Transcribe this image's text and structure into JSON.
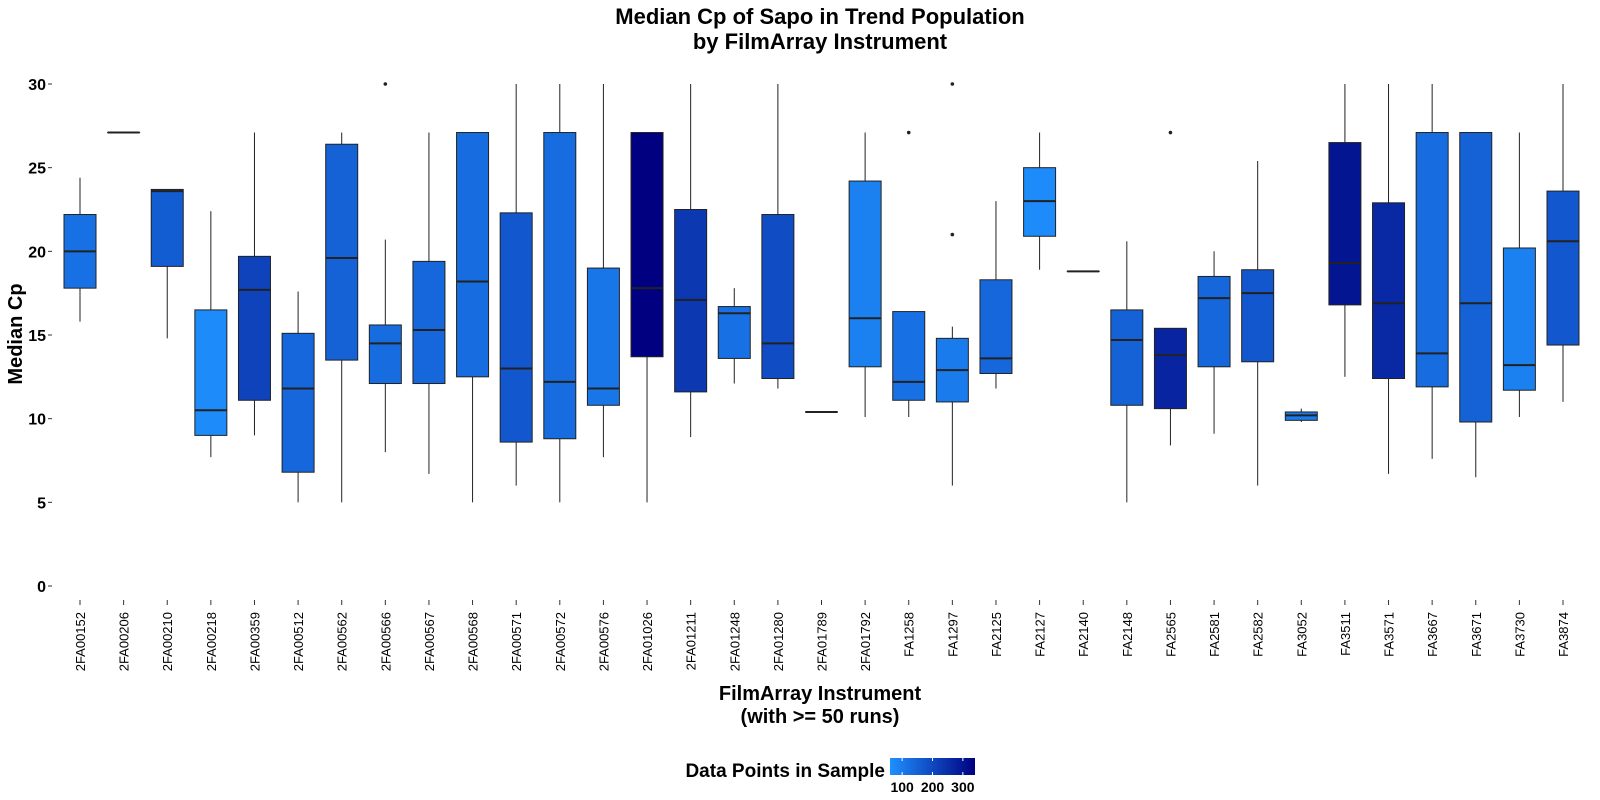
{
  "chart_data": {
    "type": "boxplot",
    "title_line1": "Median Cp of Sapo in Trend Population",
    "title_line2": "by FilmArray Instrument",
    "ylabel": "Median Cp",
    "xlabel_line1": "FilmArray Instrument",
    "xlabel_line2": "(with >= 50 runs)",
    "ylim": [
      0,
      30
    ],
    "yticks": [
      0,
      5,
      10,
      15,
      20,
      25,
      30
    ],
    "legend": {
      "title": "Data Points in Sample",
      "tick_labels": [
        "100",
        "200",
        "300"
      ],
      "gradient_colors": [
        "#1e90ff",
        "#000080"
      ],
      "range": [
        60,
        340
      ]
    },
    "boxes": [
      {
        "label": "2FA00152",
        "lower_whisker": 15.8,
        "q1": 17.8,
        "median": 20.0,
        "q3": 22.2,
        "upper_whisker": 24.4,
        "outliers": [],
        "count": 120
      },
      {
        "label": "2FA00206",
        "lower_whisker": 27.1,
        "q1": 27.1,
        "median": 27.1,
        "q3": 27.1,
        "upper_whisker": 27.1,
        "outliers": [],
        "count": 80
      },
      {
        "label": "2FA00210",
        "lower_whisker": 14.8,
        "q1": 19.1,
        "median": 23.6,
        "q3": 23.7,
        "upper_whisker": 23.7,
        "outliers": [],
        "count": 160
      },
      {
        "label": "2FA00218",
        "lower_whisker": 7.7,
        "q1": 9.0,
        "median": 10.5,
        "q3": 16.5,
        "upper_whisker": 22.4,
        "outliers": [],
        "count": 70
      },
      {
        "label": "2FA00359",
        "lower_whisker": 9.0,
        "q1": 11.1,
        "median": 17.7,
        "q3": 19.7,
        "upper_whisker": 27.1,
        "outliers": [],
        "count": 210
      },
      {
        "label": "2FA00512",
        "lower_whisker": 5.0,
        "q1": 6.8,
        "median": 11.8,
        "q3": 15.1,
        "upper_whisker": 17.6,
        "outliers": [],
        "count": 140
      },
      {
        "label": "2FA00562",
        "lower_whisker": 5.0,
        "q1": 13.5,
        "median": 19.6,
        "q3": 26.4,
        "upper_whisker": 27.1,
        "outliers": [],
        "count": 150
      },
      {
        "label": "2FA00566",
        "lower_whisker": 8.0,
        "q1": 12.1,
        "median": 14.5,
        "q3": 15.6,
        "upper_whisker": 20.7,
        "outliers": [
          30.0
        ],
        "count": 130
      },
      {
        "label": "2FA00567",
        "lower_whisker": 6.7,
        "q1": 12.1,
        "median": 15.3,
        "q3": 19.4,
        "upper_whisker": 27.1,
        "outliers": [],
        "count": 140
      },
      {
        "label": "2FA00568",
        "lower_whisker": 5.0,
        "q1": 12.5,
        "median": 18.2,
        "q3": 27.1,
        "upper_whisker": 27.1,
        "outliers": [],
        "count": 130
      },
      {
        "label": "2FA00571",
        "lower_whisker": 6.0,
        "q1": 8.6,
        "median": 13.0,
        "q3": 22.3,
        "upper_whisker": 30.0,
        "outliers": [],
        "count": 170
      },
      {
        "label": "2FA00572",
        "lower_whisker": 5.0,
        "q1": 8.8,
        "median": 12.2,
        "q3": 27.1,
        "upper_whisker": 30.0,
        "outliers": [],
        "count": 130
      },
      {
        "label": "2FA00576",
        "lower_whisker": 7.7,
        "q1": 10.8,
        "median": 11.8,
        "q3": 19.0,
        "upper_whisker": 30.0,
        "outliers": [],
        "count": 110
      },
      {
        "label": "2FA01026",
        "lower_whisker": 5.0,
        "q1": 13.7,
        "median": 17.8,
        "q3": 27.1,
        "upper_whisker": 27.1,
        "outliers": [],
        "count": 340
      },
      {
        "label": "2FA01211",
        "lower_whisker": 8.9,
        "q1": 11.6,
        "median": 17.1,
        "q3": 22.5,
        "upper_whisker": 30.0,
        "outliers": [],
        "count": 230
      },
      {
        "label": "2FA01248",
        "lower_whisker": 12.1,
        "q1": 13.6,
        "median": 16.3,
        "q3": 16.7,
        "upper_whisker": 17.8,
        "outliers": [],
        "count": 120
      },
      {
        "label": "2FA01280",
        "lower_whisker": 11.8,
        "q1": 12.4,
        "median": 14.5,
        "q3": 22.2,
        "upper_whisker": 30.0,
        "outliers": [],
        "count": 190
      },
      {
        "label": "2FA01789",
        "lower_whisker": 10.4,
        "q1": 10.4,
        "median": 10.4,
        "q3": 10.4,
        "upper_whisker": 10.4,
        "outliers": [],
        "count": 80
      },
      {
        "label": "2FA01792",
        "lower_whisker": 10.1,
        "q1": 13.1,
        "median": 16.0,
        "q3": 24.2,
        "upper_whisker": 27.1,
        "outliers": [],
        "count": 90
      },
      {
        "label": "FA1258",
        "lower_whisker": 10.1,
        "q1": 11.1,
        "median": 12.2,
        "q3": 16.4,
        "upper_whisker": 16.4,
        "outliers": [
          27.1
        ],
        "count": 120
      },
      {
        "label": "FA1297",
        "lower_whisker": 6.0,
        "q1": 11.0,
        "median": 12.9,
        "q3": 14.8,
        "upper_whisker": 15.5,
        "outliers": [
          21.0,
          30.0
        ],
        "count": 100
      },
      {
        "label": "FA2125",
        "lower_whisker": 11.8,
        "q1": 12.7,
        "median": 13.6,
        "q3": 18.3,
        "upper_whisker": 23.0,
        "outliers": [],
        "count": 140
      },
      {
        "label": "FA2127",
        "lower_whisker": 18.9,
        "q1": 20.9,
        "median": 23.0,
        "q3": 25.0,
        "upper_whisker": 27.1,
        "outliers": [],
        "count": 70
      },
      {
        "label": "FA2140",
        "lower_whisker": 18.8,
        "q1": 18.8,
        "median": 18.8,
        "q3": 18.8,
        "upper_whisker": 18.8,
        "outliers": [],
        "count": 80
      },
      {
        "label": "FA2148",
        "lower_whisker": 5.0,
        "q1": 10.8,
        "median": 14.7,
        "q3": 16.5,
        "upper_whisker": 20.6,
        "outliers": [],
        "count": 150
      },
      {
        "label": "FA2565",
        "lower_whisker": 8.4,
        "q1": 10.6,
        "median": 13.8,
        "q3": 15.4,
        "upper_whisker": 15.4,
        "outliers": [
          27.1
        ],
        "count": 270
      },
      {
        "label": "FA2581",
        "lower_whisker": 9.1,
        "q1": 13.1,
        "median": 17.2,
        "q3": 18.5,
        "upper_whisker": 20.0,
        "outliers": [],
        "count": 140
      },
      {
        "label": "FA2582",
        "lower_whisker": 6.0,
        "q1": 13.4,
        "median": 17.5,
        "q3": 18.9,
        "upper_whisker": 25.4,
        "outliers": [],
        "count": 170
      },
      {
        "label": "FA3052",
        "lower_whisker": 9.8,
        "q1": 9.9,
        "median": 10.2,
        "q3": 10.4,
        "upper_whisker": 10.6,
        "outliers": [],
        "count": 100
      },
      {
        "label": "FA3511",
        "lower_whisker": 12.5,
        "q1": 16.8,
        "median": 19.3,
        "q3": 26.5,
        "upper_whisker": 30.0,
        "outliers": [],
        "count": 300
      },
      {
        "label": "FA3571",
        "lower_whisker": 6.7,
        "q1": 12.4,
        "median": 16.9,
        "q3": 22.9,
        "upper_whisker": 30.0,
        "outliers": [],
        "count": 260
      },
      {
        "label": "FA3667",
        "lower_whisker": 7.6,
        "q1": 11.9,
        "median": 13.9,
        "q3": 27.1,
        "upper_whisker": 30.0,
        "outliers": [],
        "count": 130
      },
      {
        "label": "FA3671",
        "lower_whisker": 6.5,
        "q1": 9.8,
        "median": 16.9,
        "q3": 27.1,
        "upper_whisker": 27.1,
        "outliers": [],
        "count": 150
      },
      {
        "label": "FA3730",
        "lower_whisker": 10.1,
        "q1": 11.7,
        "median": 13.2,
        "q3": 20.2,
        "upper_whisker": 27.1,
        "outliers": [],
        "count": 90
      },
      {
        "label": "FA3874",
        "lower_whisker": 11.0,
        "q1": 14.4,
        "median": 20.6,
        "q3": 23.6,
        "upper_whisker": 30.0,
        "outliers": [],
        "count": 170
      }
    ]
  }
}
